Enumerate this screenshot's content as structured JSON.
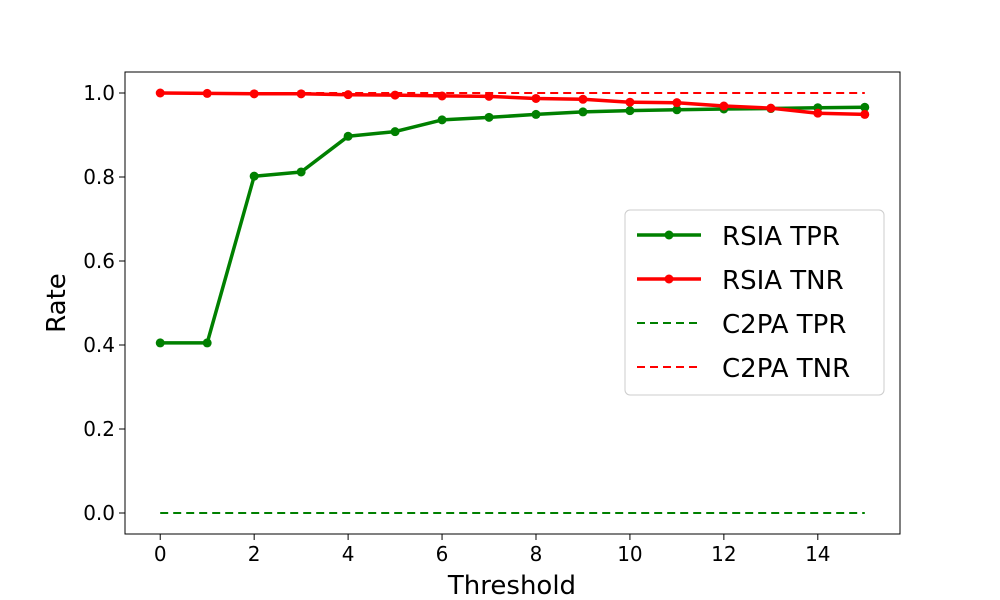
{
  "chart_data": {
    "type": "line",
    "title": "",
    "xlabel": "Threshold",
    "ylabel": "Rate",
    "xlim": [
      -0.75,
      15.75
    ],
    "ylim": [
      -0.05,
      1.05
    ],
    "xticks": [
      0,
      2,
      4,
      6,
      8,
      10,
      12,
      14
    ],
    "xtick_labels": [
      "0",
      "2",
      "4",
      "6",
      "8",
      "10",
      "12",
      "14"
    ],
    "yticks": [
      0.0,
      0.2,
      0.4,
      0.6,
      0.8,
      1.0
    ],
    "ytick_labels": [
      "0.0",
      "0.2",
      "0.4",
      "0.6",
      "0.8",
      "1.0"
    ],
    "grid": false,
    "legend_position": "center-right",
    "series": [
      {
        "name": "RSIA TPR",
        "color": "#008000",
        "style": "solid-marker",
        "x": [
          0,
          1,
          2,
          3,
          4,
          5,
          6,
          7,
          8,
          9,
          10,
          11,
          12,
          13,
          14,
          15
        ],
        "y": [
          0.405,
          0.405,
          0.802,
          0.812,
          0.897,
          0.908,
          0.936,
          0.942,
          0.949,
          0.955,
          0.958,
          0.96,
          0.962,
          0.963,
          0.965,
          0.966
        ]
      },
      {
        "name": "RSIA TNR",
        "color": "#ff0000",
        "style": "solid-marker",
        "x": [
          0,
          1,
          2,
          3,
          4,
          5,
          6,
          7,
          8,
          9,
          10,
          11,
          12,
          13,
          14,
          15
        ],
        "y": [
          1.0,
          0.999,
          0.998,
          0.998,
          0.996,
          0.995,
          0.993,
          0.992,
          0.987,
          0.985,
          0.978,
          0.977,
          0.969,
          0.964,
          0.952,
          0.949
        ]
      },
      {
        "name": "C2PA TPR",
        "color": "#008000",
        "style": "dashed",
        "x": [
          0,
          1,
          2,
          3,
          4,
          5,
          6,
          7,
          8,
          9,
          10,
          11,
          12,
          13,
          14,
          15
        ],
        "y": [
          0,
          0,
          0,
          0,
          0,
          0,
          0,
          0,
          0,
          0,
          0,
          0,
          0,
          0,
          0,
          0
        ]
      },
      {
        "name": "C2PA TNR",
        "color": "#ff0000",
        "style": "dashed",
        "x": [
          0,
          1,
          2,
          3,
          4,
          5,
          6,
          7,
          8,
          9,
          10,
          11,
          12,
          13,
          14,
          15
        ],
        "y": [
          1,
          1,
          1,
          1,
          1,
          1,
          1,
          1,
          1,
          1,
          1,
          1,
          1,
          1,
          1,
          1
        ]
      }
    ]
  }
}
